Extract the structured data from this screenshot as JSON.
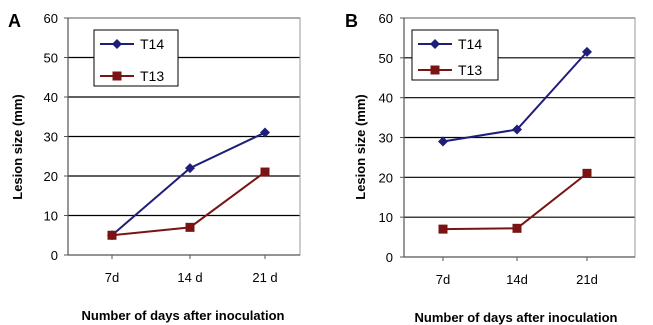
{
  "chart_data": [
    {
      "panel": "A",
      "type": "line",
      "categories": [
        "7d",
        "14 d",
        "21 d"
      ],
      "series": [
        {
          "name": "T14",
          "values": [
            5,
            22,
            31
          ],
          "color": "#1f1f7a",
          "marker": "diamond"
        },
        {
          "name": "T13",
          "values": [
            5,
            7,
            21
          ],
          "color": "#7a1414",
          "marker": "square"
        }
      ],
      "ylim": [
        0,
        60
      ],
      "yticks": [
        0,
        10,
        20,
        30,
        40,
        50,
        60
      ],
      "ylabel": "Lesion size (mm)",
      "xlabel": "Number of days after inoculation",
      "grid": true,
      "legend": "top-left"
    },
    {
      "panel": "B",
      "type": "line",
      "categories": [
        "7d",
        "14d",
        "21d"
      ],
      "series": [
        {
          "name": "T14",
          "values": [
            29,
            32,
            51.5
          ],
          "color": "#1f1f7a",
          "marker": "diamond"
        },
        {
          "name": "T13",
          "values": [
            7,
            7.2,
            21
          ],
          "color": "#7a1414",
          "marker": "square"
        }
      ],
      "ylim": [
        0,
        60
      ],
      "yticks": [
        0,
        10,
        20,
        30,
        40,
        50,
        60
      ],
      "ylabel": "Lesion size (mm)",
      "xlabel": "Number of days after inoculation",
      "grid": true,
      "legend": "top-left"
    }
  ]
}
